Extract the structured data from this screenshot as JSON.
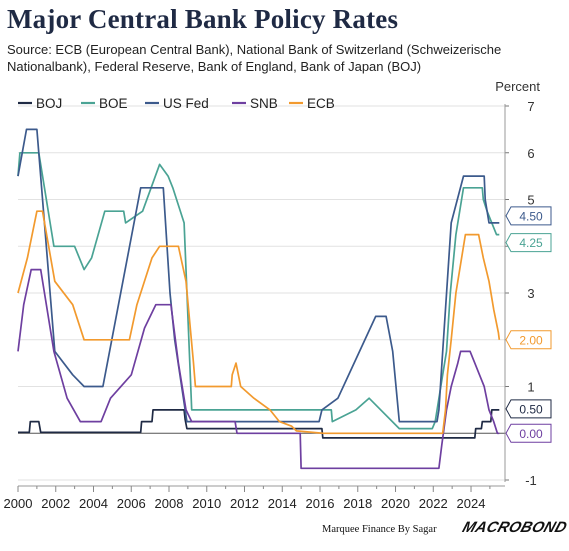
{
  "title": "Major Central Bank Policy Rates",
  "subtitle": "Source: ECB (European Central Bank), National Bank of Switzerland (Schweizerische Nationalbank), Federal Reserve, Bank of England, Bank of Japan (BOJ)",
  "footer": {
    "credit": "Marquee Finance By Sagar",
    "logo": "MACROBOND"
  },
  "chart_data": {
    "type": "line",
    "ylabel": "Percent",
    "ylim": [
      -1,
      7
    ],
    "xlim": [
      2000.0,
      2025.8
    ],
    "yticks": [
      "-1",
      "0",
      "1",
      "2",
      "3",
      "4",
      "5",
      "6",
      "7"
    ],
    "xticks": [
      "2000",
      "2002",
      "2004",
      "2006",
      "2008",
      "2010",
      "2012",
      "2014",
      "2016",
      "2018",
      "2020",
      "2022",
      "2024"
    ],
    "grid": "horizontal",
    "legend_position": "top-left",
    "series": [
      {
        "name": "BOJ",
        "color": "#1f2a44",
        "end_label": "0.50",
        "points": [
          [
            2000.0,
            0.02
          ],
          [
            2000.6,
            0.02
          ],
          [
            2000.65,
            0.25
          ],
          [
            2001.1,
            0.25
          ],
          [
            2001.2,
            0.02
          ],
          [
            2006.5,
            0.02
          ],
          [
            2006.55,
            0.25
          ],
          [
            2007.1,
            0.25
          ],
          [
            2007.15,
            0.5
          ],
          [
            2008.8,
            0.5
          ],
          [
            2008.85,
            0.3
          ],
          [
            2008.95,
            0.1
          ],
          [
            2016.1,
            0.1
          ],
          [
            2016.15,
            -0.1
          ],
          [
            2024.2,
            -0.1
          ],
          [
            2024.25,
            0.1
          ],
          [
            2024.55,
            0.1
          ],
          [
            2024.6,
            0.25
          ],
          [
            2025.05,
            0.25
          ],
          [
            2025.1,
            0.5
          ],
          [
            2025.5,
            0.5
          ]
        ]
      },
      {
        "name": "BOE",
        "color": "#4aa394",
        "end_label": "4.25",
        "points": [
          [
            2000.0,
            5.5
          ],
          [
            2000.1,
            6.0
          ],
          [
            2001.1,
            6.0
          ],
          [
            2001.9,
            4.0
          ],
          [
            2003.0,
            4.0
          ],
          [
            2003.5,
            3.5
          ],
          [
            2003.9,
            3.75
          ],
          [
            2004.6,
            4.75
          ],
          [
            2005.6,
            4.75
          ],
          [
            2005.7,
            4.5
          ],
          [
            2006.6,
            4.75
          ],
          [
            2007.5,
            5.75
          ],
          [
            2007.95,
            5.5
          ],
          [
            2008.2,
            5.25
          ],
          [
            2008.8,
            4.5
          ],
          [
            2009.2,
            0.5
          ],
          [
            2016.6,
            0.5
          ],
          [
            2016.65,
            0.25
          ],
          [
            2017.9,
            0.5
          ],
          [
            2018.6,
            0.75
          ],
          [
            2020.2,
            0.1
          ],
          [
            2021.95,
            0.1
          ],
          [
            2022.1,
            0.25
          ],
          [
            2022.4,
            1.0
          ],
          [
            2022.7,
            1.75
          ],
          [
            2022.9,
            3.0
          ],
          [
            2023.2,
            4.25
          ],
          [
            2023.6,
            5.25
          ],
          [
            2024.6,
            5.25
          ],
          [
            2024.65,
            5.0
          ],
          [
            2024.85,
            4.75
          ],
          [
            2025.1,
            4.5
          ],
          [
            2025.35,
            4.25
          ],
          [
            2025.5,
            4.25
          ]
        ]
      },
      {
        "name": "US Fed",
        "color": "#3c5a8c",
        "end_label": "4.50",
        "points": [
          [
            2000.0,
            5.5
          ],
          [
            2000.45,
            6.5
          ],
          [
            2001.0,
            6.5
          ],
          [
            2001.95,
            1.75
          ],
          [
            2002.9,
            1.25
          ],
          [
            2003.5,
            1.0
          ],
          [
            2004.5,
            1.0
          ],
          [
            2006.5,
            5.25
          ],
          [
            2007.7,
            5.25
          ],
          [
            2008.05,
            3.0
          ],
          [
            2008.3,
            2.0
          ],
          [
            2008.95,
            0.25
          ],
          [
            2015.95,
            0.25
          ],
          [
            2016.1,
            0.5
          ],
          [
            2016.95,
            0.75
          ],
          [
            2018.95,
            2.5
          ],
          [
            2019.5,
            2.5
          ],
          [
            2019.85,
            1.75
          ],
          [
            2020.2,
            0.25
          ],
          [
            2022.2,
            0.25
          ],
          [
            2022.3,
            0.5
          ],
          [
            2022.5,
            1.75
          ],
          [
            2022.95,
            4.5
          ],
          [
            2023.6,
            5.5
          ],
          [
            2024.7,
            5.5
          ],
          [
            2024.75,
            5.0
          ],
          [
            2024.95,
            4.5
          ],
          [
            2025.5,
            4.5
          ]
        ]
      },
      {
        "name": "SNB",
        "color": "#6e3fa0",
        "end_label": "0.00",
        "points": [
          [
            2000.0,
            1.75
          ],
          [
            2000.3,
            2.75
          ],
          [
            2000.7,
            3.5
          ],
          [
            2001.2,
            3.5
          ],
          [
            2001.9,
            1.75
          ],
          [
            2002.6,
            0.75
          ],
          [
            2003.3,
            0.25
          ],
          [
            2004.4,
            0.25
          ],
          [
            2004.9,
            0.75
          ],
          [
            2006.0,
            1.25
          ],
          [
            2006.7,
            2.25
          ],
          [
            2007.3,
            2.75
          ],
          [
            2008.1,
            2.75
          ],
          [
            2008.5,
            1.5
          ],
          [
            2008.9,
            0.5
          ],
          [
            2009.2,
            0.25
          ],
          [
            2011.5,
            0.25
          ],
          [
            2011.6,
            0.0
          ],
          [
            2014.95,
            0.0
          ],
          [
            2015.0,
            -0.75
          ],
          [
            2022.3,
            -0.75
          ],
          [
            2022.45,
            -0.25
          ],
          [
            2022.7,
            0.5
          ],
          [
            2022.95,
            1.0
          ],
          [
            2023.3,
            1.5
          ],
          [
            2023.45,
            1.75
          ],
          [
            2023.95,
            1.75
          ],
          [
            2024.2,
            1.5
          ],
          [
            2024.45,
            1.25
          ],
          [
            2024.7,
            1.0
          ],
          [
            2024.95,
            0.5
          ],
          [
            2025.2,
            0.25
          ],
          [
            2025.4,
            0.0
          ],
          [
            2025.5,
            0.0
          ]
        ]
      },
      {
        "name": "ECB",
        "color": "#f29a2e",
        "end_label": "2.00",
        "points": [
          [
            2000.0,
            3.0
          ],
          [
            2000.5,
            3.75
          ],
          [
            2001.0,
            4.75
          ],
          [
            2001.3,
            4.75
          ],
          [
            2001.95,
            3.25
          ],
          [
            2002.9,
            2.75
          ],
          [
            2003.5,
            2.0
          ],
          [
            2005.9,
            2.0
          ],
          [
            2006.3,
            2.75
          ],
          [
            2007.1,
            3.75
          ],
          [
            2007.5,
            4.0
          ],
          [
            2008.5,
            4.0
          ],
          [
            2008.9,
            3.25
          ],
          [
            2009.3,
            1.5
          ],
          [
            2009.4,
            1.0
          ],
          [
            2011.3,
            1.0
          ],
          [
            2011.35,
            1.25
          ],
          [
            2011.55,
            1.5
          ],
          [
            2011.8,
            1.0
          ],
          [
            2012.5,
            0.75
          ],
          [
            2013.35,
            0.5
          ],
          [
            2013.85,
            0.25
          ],
          [
            2014.5,
            0.15
          ],
          [
            2014.75,
            0.05
          ],
          [
            2016.2,
            0.0
          ],
          [
            2022.5,
            0.0
          ],
          [
            2022.65,
            0.5
          ],
          [
            2022.75,
            1.25
          ],
          [
            2022.95,
            2.0
          ],
          [
            2023.2,
            3.0
          ],
          [
            2023.6,
            4.0
          ],
          [
            2023.7,
            4.25
          ],
          [
            2024.4,
            4.25
          ],
          [
            2024.65,
            3.75
          ],
          [
            2024.95,
            3.25
          ],
          [
            2025.2,
            2.65
          ],
          [
            2025.45,
            2.15
          ],
          [
            2025.5,
            2.0
          ]
        ]
      }
    ]
  }
}
